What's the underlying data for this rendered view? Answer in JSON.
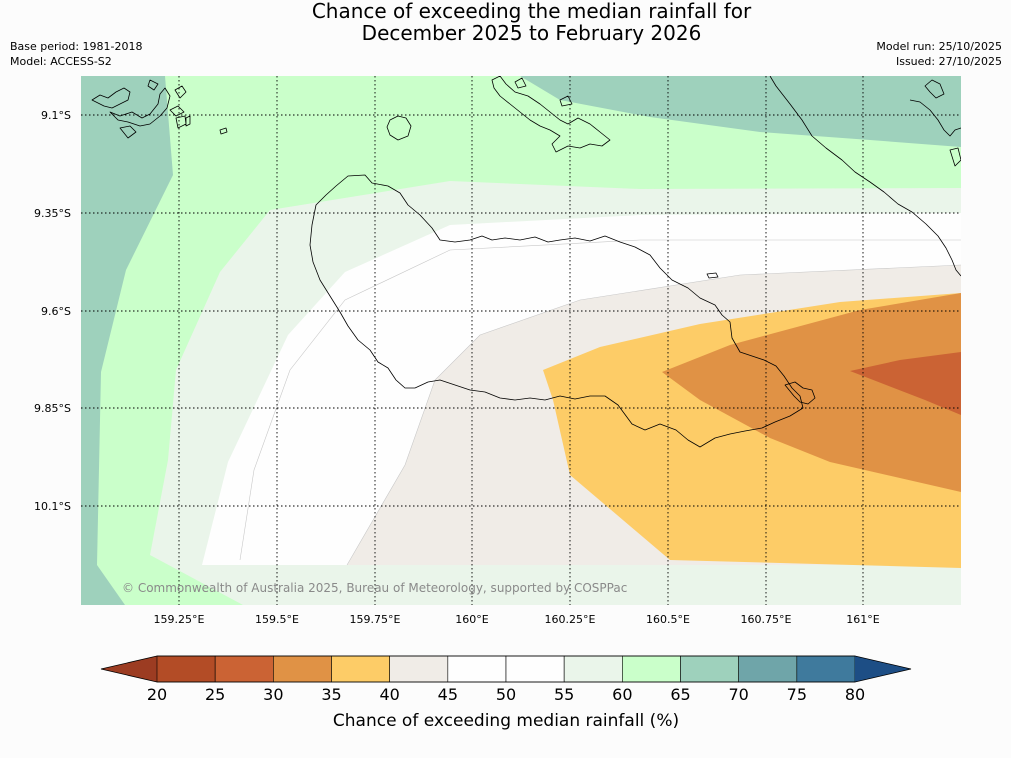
{
  "title": {
    "line1": "Chance of exceeding the median rainfall for",
    "line2": "December 2025 to February 2026"
  },
  "meta": {
    "base_period": "Base period: 1981-2018",
    "model": "Model: ACCESS-S2",
    "model_run": "Model run: 25/10/2025",
    "issued": "Issued: 27/10/2025"
  },
  "map": {
    "latitude_labels": [
      "9.1°S",
      "9.35°S",
      "9.6°S",
      "9.85°S",
      "10.1°S"
    ],
    "longitude_labels": [
      "159.25°E",
      "159.5°E",
      "159.75°E",
      "160°E",
      "160.25°E",
      "160.5°E",
      "160.75°E",
      "161°E"
    ],
    "copyright": "© Commonwealth of Australia 2025, Bureau of Meteorology, supported by COSPPac"
  },
  "colorbar": {
    "title": "Chance of exceeding median rainfall (%)",
    "tick_labels": [
      "20",
      "25",
      "30",
      "35",
      "40",
      "45",
      "50",
      "55",
      "60",
      "65",
      "70",
      "75",
      "80"
    ],
    "colors": [
      "#b34c26",
      "#cb6334",
      "#e09245",
      "#fdcc67",
      "#f0ece7",
      "#fefefe",
      "#fefefe",
      "#eaf5ea",
      "#caffca",
      "#9ed1bc",
      "#6fa5a9",
      "#3f7a9d"
    ],
    "under_color": "#9c3c22",
    "over_color": "#1d4e85"
  }
}
